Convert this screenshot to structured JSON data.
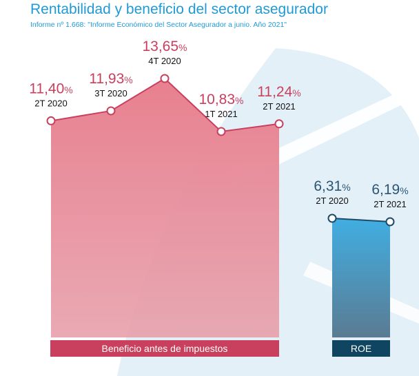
{
  "title": "Rentabilidad y beneficio del sector asegurador",
  "subtitle": "Informe nº 1.668: \"Informe Económico del Sector Asegurador a junio. Año 2021\"",
  "colors": {
    "accent": "#1f9ad6",
    "beneficio_line": "#c8405e",
    "beneficio_fill": "#e88a98",
    "beneficio_label": "#c8405e",
    "roe_line": "#1d4a66",
    "roe_fill": "#3fa9dd",
    "roe_label": "#0f4560",
    "value_red": "#c8405e",
    "value_blue": "#2d5573"
  },
  "chart_data": [
    {
      "type": "area",
      "title": "Beneficio antes de impuestos",
      "categories": [
        "2T 2020",
        "3T 2020",
        "4T 2020",
        "1T 2021",
        "2T 2021"
      ],
      "values": [
        11.4,
        11.93,
        13.65,
        10.83,
        11.24
      ],
      "value_labels": [
        "11,40",
        "11,93",
        "13,65",
        "10,83",
        "11,24"
      ],
      "unit": "%"
    },
    {
      "type": "area",
      "title": "ROE",
      "categories": [
        "2T 2020",
        "2T 2021"
      ],
      "values": [
        6.31,
        6.19
      ],
      "value_labels": [
        "6,31",
        "6,19"
      ],
      "unit": "%"
    }
  ]
}
